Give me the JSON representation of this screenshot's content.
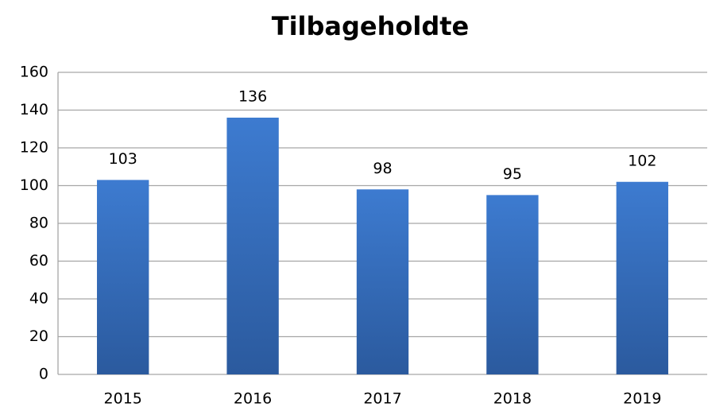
{
  "chart_data": {
    "type": "bar",
    "title": "Tilbageholdte",
    "categories": [
      "2015",
      "2016",
      "2017",
      "2018",
      "2019"
    ],
    "values": [
      103,
      136,
      98,
      95,
      102
    ],
    "color": "#3d7bd0",
    "ylim": [
      0,
      160
    ],
    "yticks": [
      0,
      20,
      40,
      60,
      80,
      100,
      120,
      140,
      160
    ],
    "grid": true
  }
}
